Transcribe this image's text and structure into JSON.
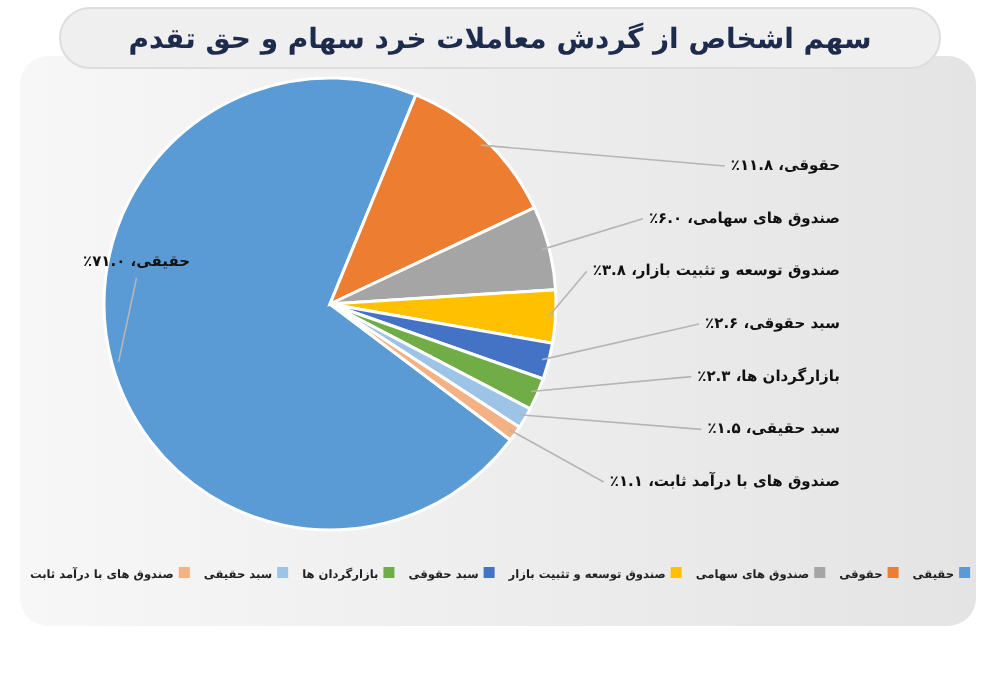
{
  "chart_data": {
    "type": "pie",
    "title": "سهم اشخاص از گردش معاملات خرد سهام و حق تقدم",
    "legend": "bottom",
    "categories": [
      "حقیقی",
      "حقوقی",
      "صندوق های سهامی",
      "صندوق توسعه و تثبیت بازار",
      "سبد حقوقی",
      "بازارگردان ها",
      "سبد حقیقی",
      "صندوق های با درآمد ثابت"
    ],
    "values": [
      71.0,
      11.8,
      6.0,
      3.8,
      2.6,
      2.3,
      1.5,
      1.1
    ],
    "colors": [
      "#5b9bd5",
      "#ed7d31",
      "#a5a5a5",
      "#ffc000",
      "#4472c4",
      "#70ad47",
      "#9dc3e6",
      "#f4b183"
    ],
    "value_labels": [
      "حقیقی، ۷۱.۰٪",
      "حقوقی، ۱۱.۸٪",
      "صندوق های سهامی، ۶.۰٪",
      "صندوق توسعه و تثبیت بازار، ۳.۸٪",
      "سبد حقوقی، ۲.۶٪",
      "بازارگردان ها، ۲.۳٪",
      "سبد حقیقی، ۱.۵٪",
      "صندوق های با درآمد ثابت، ۱.۱٪"
    ]
  }
}
